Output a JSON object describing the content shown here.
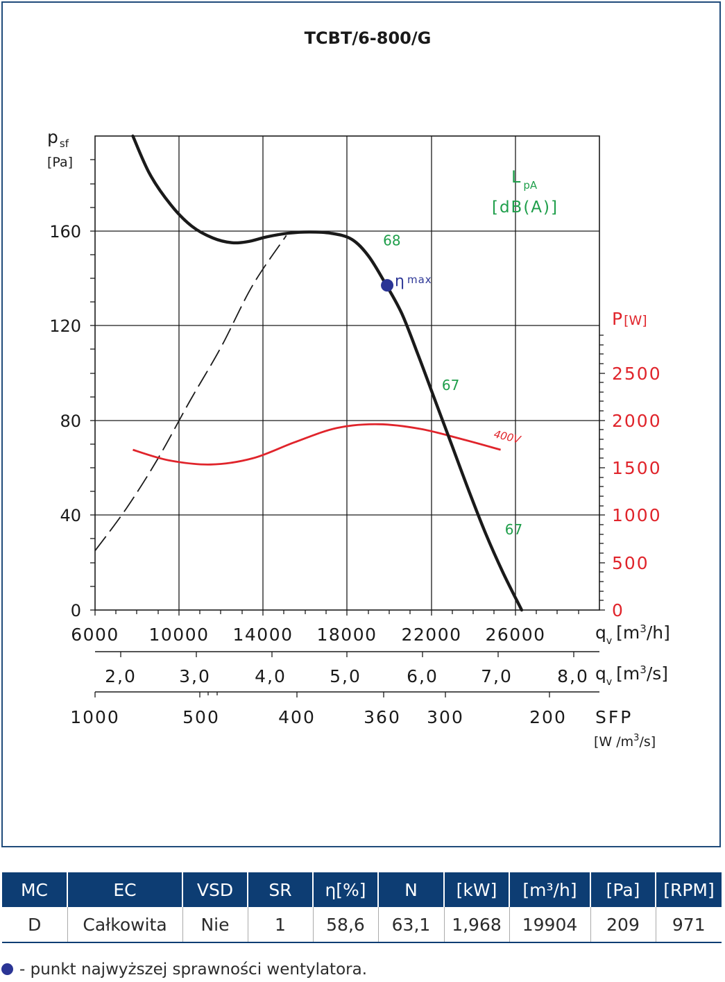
{
  "chart_data": {
    "type": "line",
    "title": "TCBT/6-800/G",
    "y_axis": {
      "label": "p",
      "label_sub": "sf",
      "unit": "[Pa]",
      "ylim": [
        0,
        200
      ],
      "ticks": [
        "0",
        "40",
        "80",
        "120",
        "160"
      ]
    },
    "y2_axis": {
      "label": "P",
      "unit": "[W]",
      "ylim": [
        0,
        5000
      ],
      "ticks": [
        "0",
        "500",
        "1000",
        "1500",
        "2000",
        "2500"
      ]
    },
    "x_axis_m3h": {
      "label": "q",
      "label_sub": "v",
      "unit_pre": "[m",
      "unit_sup": "3",
      "unit_post": "/h]",
      "xlim": [
        6000,
        30000
      ],
      "ticks": [
        "6000",
        "10000",
        "14000",
        "18000",
        "22000",
        "26000"
      ]
    },
    "x_axis_m3s": {
      "label": "q",
      "label_sub": "v",
      "unit_pre": "[m",
      "unit_sup": "3",
      "unit_post": "/s]",
      "ticks": [
        "2,0",
        "3,0",
        "4,0",
        "5,0",
        "6,0",
        "7,0",
        "8,0"
      ]
    },
    "sfp_axis": {
      "label": "SFP",
      "unit_pre": "[W /m",
      "unit_sup": "3",
      "unit_post": "/s]",
      "ticks": [
        "1000",
        "500",
        "400",
        "360",
        "300",
        "200"
      ]
    },
    "lpa_label": {
      "line1": "L",
      "line1_sub": "pA",
      "line2": "[dB(A)]"
    },
    "series": [
      {
        "kind": "pressure",
        "x": [
          7800,
          8600,
          9600,
          10600,
          11600,
          12500,
          13300,
          14200,
          15200,
          16200,
          17200,
          18200,
          19000,
          19800,
          20600,
          21400,
          22200,
          23000,
          23800,
          24600,
          25400,
          26300
        ],
        "y": [
          200,
          184,
          171,
          162,
          157,
          155,
          155.5,
          157.5,
          159,
          159.5,
          159,
          156.5,
          149.5,
          138,
          125,
          107,
          88,
          69,
          50,
          32,
          16,
          0
        ],
        "color": "#1a1a1a"
      },
      {
        "kind": "power",
        "name": "400V",
        "x": [
          7800,
          9500,
          11500,
          13500,
          15500,
          17500,
          19500,
          21500,
          23500,
          25300
        ],
        "y": [
          1690,
          1580,
          1535,
          1600,
          1770,
          1920,
          1960,
          1910,
          1800,
          1690
        ],
        "color": "#e0242b"
      },
      {
        "kind": "system",
        "x": [
          6000,
          7500,
          9000,
          10500,
          12000,
          13500,
          15100
        ],
        "y": [
          25,
          43,
          64,
          88,
          111,
          137,
          158
        ],
        "color": "#1a1a1a"
      }
    ],
    "lpa_marks": [
      {
        "text": "68",
        "x": 20100,
        "y": 148
      },
      {
        "text": "67",
        "x": 22900,
        "y": 87
      },
      {
        "text": "67",
        "x": 25900,
        "y": 26
      }
    ],
    "eta_max": {
      "symbol": "η",
      "label": "max",
      "x": 19900,
      "y": 137,
      "color": "#2b3595"
    },
    "colors": {
      "pressure": "#1a1a1a",
      "power": "#e0242b",
      "lpa": "#1e9e4a",
      "eta": "#2b3595",
      "frame": "#1f4a7a",
      "header": "#0d3d73"
    }
  },
  "table": {
    "headers": [
      "MC",
      "EC",
      "VSD",
      "SR",
      "η[%]",
      "N",
      "[kW]",
      "[m³/h]",
      "[Pa]",
      "[RPM]"
    ],
    "rows": [
      [
        "D",
        "Całkowita",
        "Nie",
        "1",
        "58,6",
        "63,1",
        "1,968",
        "19904",
        "209",
        "971"
      ]
    ]
  },
  "footnote": "- punkt najwyższej sprawności wentylatora."
}
